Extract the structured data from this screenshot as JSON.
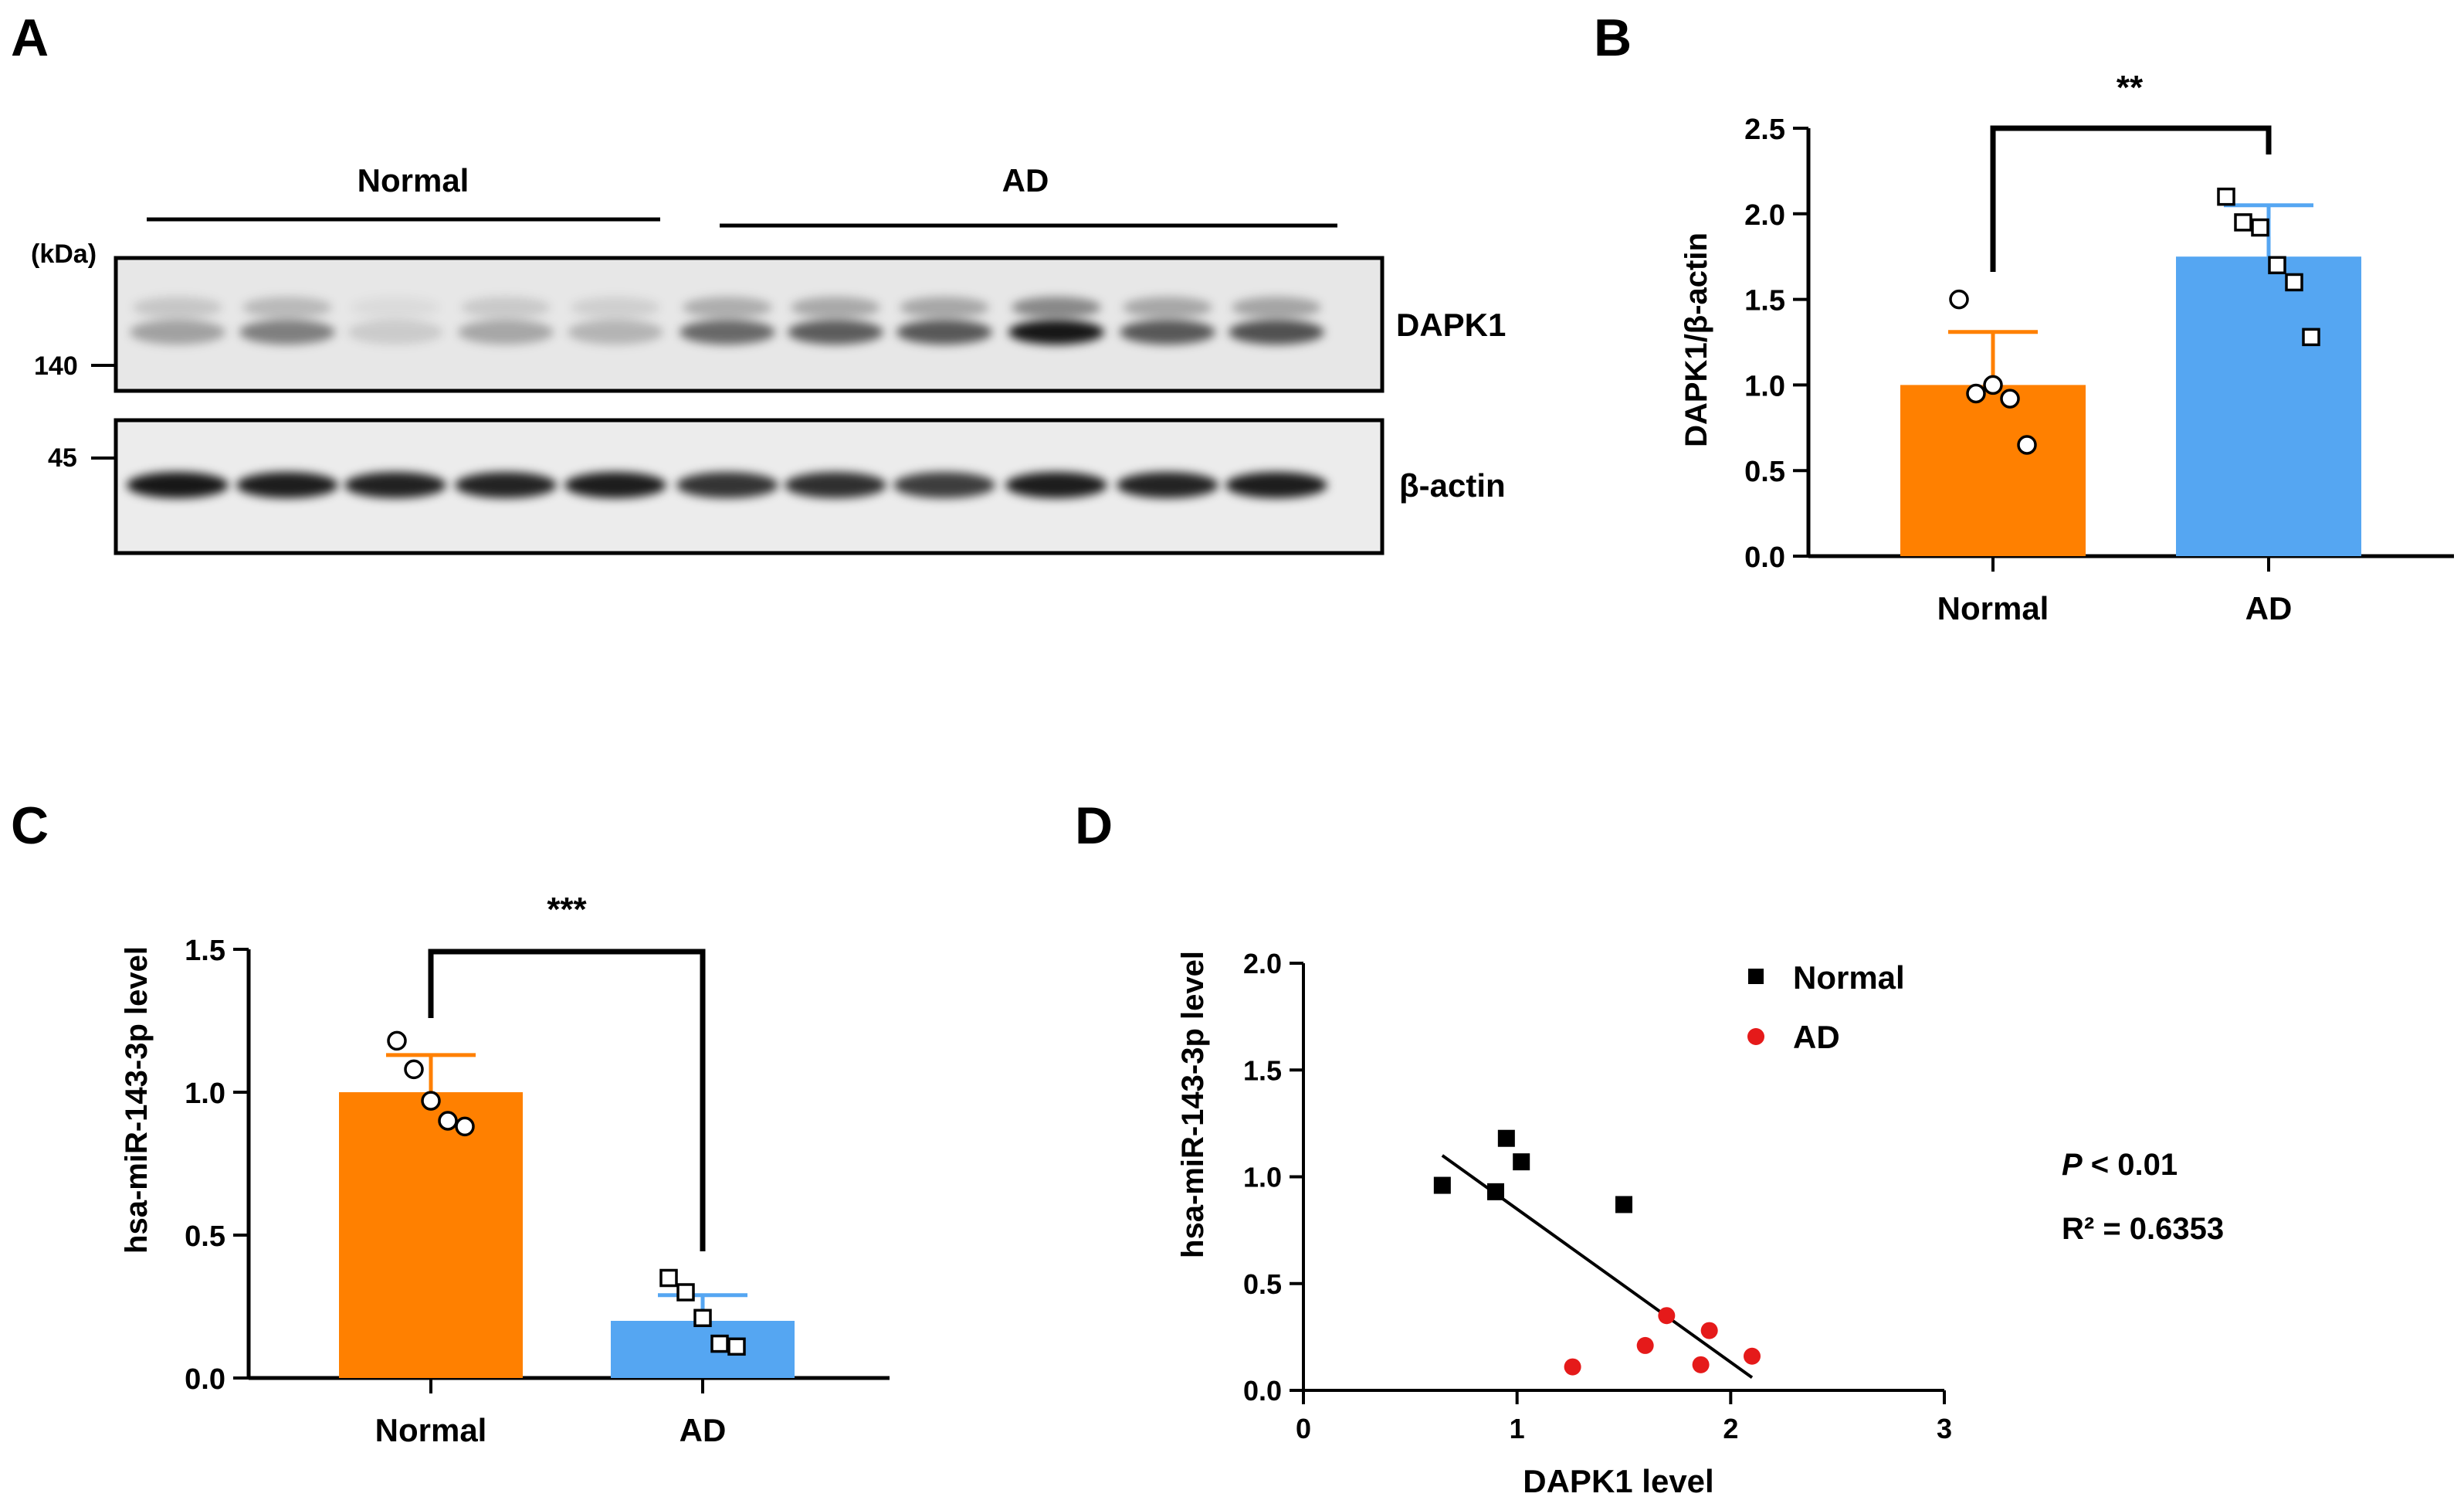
{
  "panels": {
    "A": "A",
    "B": "B",
    "C": "C",
    "D": "D"
  },
  "colors": {
    "normal": "#ff8000",
    "ad": "#55a6f2",
    "dot_ad": "#e51a1a",
    "ink": "#000000"
  },
  "blot": {
    "group_labels": [
      "Normal",
      "AD"
    ],
    "kda_label": "(kDa)",
    "markers": [
      "140",
      "45"
    ],
    "bands": [
      "DAPK1",
      "β-actin"
    ],
    "dapk1_intensity": [
      0.3,
      0.45,
      0.12,
      0.28,
      0.22,
      0.55,
      0.6,
      0.62,
      0.9,
      0.62,
      0.65
    ],
    "actin_intensity": [
      0.9,
      0.88,
      0.86,
      0.85,
      0.88,
      0.78,
      0.8,
      0.74,
      0.88,
      0.85,
      0.88
    ]
  },
  "chart_data": [
    {
      "panel": "B",
      "type": "bar",
      "categories": [
        "Normal",
        "AD"
      ],
      "values": [
        1.0,
        1.75
      ],
      "errors": [
        0.31,
        0.3
      ],
      "points": [
        [
          1.5,
          0.95,
          1.0,
          0.92,
          0.65
        ],
        [
          2.1,
          1.95,
          1.92,
          1.7,
          1.6,
          1.28
        ]
      ],
      "ylabel": "DAPK1/β-actin",
      "ylim": [
        0,
        2.5
      ],
      "yticks": [
        0.0,
        0.5,
        1.0,
        1.5,
        2.0,
        2.5
      ],
      "ytick_labels": [
        "0.0",
        "0.5",
        "1.0",
        "1.5",
        "2.0",
        "2.5"
      ],
      "significance": "**"
    },
    {
      "panel": "C",
      "type": "bar",
      "categories": [
        "Normal",
        "AD"
      ],
      "values": [
        1.0,
        0.2
      ],
      "errors": [
        0.13,
        0.09
      ],
      "points": [
        [
          1.18,
          1.08,
          0.97,
          0.9,
          0.88
        ],
        [
          0.35,
          0.3,
          0.21,
          0.12,
          0.11
        ]
      ],
      "ylabel": "hsa-miR-143-3p level",
      "ylim": [
        0,
        1.5
      ],
      "yticks": [
        0.0,
        0.5,
        1.0,
        1.5
      ],
      "ytick_labels": [
        "0.0",
        "0.5",
        "1.0",
        "1.5"
      ],
      "significance": "***"
    },
    {
      "panel": "D",
      "type": "scatter",
      "series": [
        {
          "name": "Normal",
          "x": [
            0.65,
            0.9,
            0.95,
            1.02,
            1.5
          ],
          "y": [
            0.96,
            0.93,
            1.18,
            1.07,
            0.87
          ]
        },
        {
          "name": "AD",
          "x": [
            1.26,
            1.6,
            1.7,
            1.86,
            1.9,
            2.1
          ],
          "y": [
            0.11,
            0.21,
            0.35,
            0.12,
            0.28,
            0.16
          ]
        }
      ],
      "fit_line": {
        "x": [
          0.65,
          2.1
        ],
        "y": [
          1.1,
          0.06
        ]
      },
      "xlabel": "DAPK1 level",
      "ylabel": "hsa-miR-143-3p level",
      "xlim": [
        0,
        3
      ],
      "ylim": [
        0,
        2.0
      ],
      "xticks": [
        0,
        1,
        2,
        3
      ],
      "xtick_labels": [
        "0",
        "1",
        "2",
        "3"
      ],
      "yticks": [
        0.0,
        0.5,
        1.0,
        1.5,
        2.0
      ],
      "ytick_labels": [
        "0.0",
        "0.5",
        "1.0",
        "1.5",
        "2.0"
      ],
      "stats": {
        "p_italic": "P",
        "p_rest": " < 0.01",
        "r2": "R² = 0.6353"
      }
    }
  ]
}
